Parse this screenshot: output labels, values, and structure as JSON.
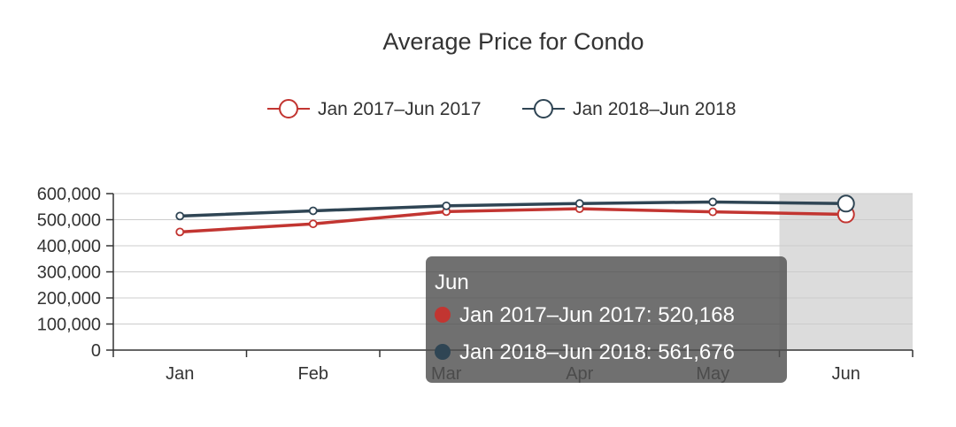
{
  "chart_data": {
    "type": "line",
    "title": "Average Price for Condo",
    "categories": [
      "Jan",
      "Feb",
      "Mar",
      "Apr",
      "May",
      "Jun"
    ],
    "series": [
      {
        "name": "Jan 2017–Jun 2017",
        "color": "#c23531",
        "values": [
          453000,
          484000,
          531000,
          542000,
          530000,
          520168
        ]
      },
      {
        "name": "Jan 2018–Jun 2018",
        "color": "#2f4554",
        "values": [
          514000,
          534000,
          553000,
          562000,
          568000,
          561676
        ]
      }
    ],
    "ylim": [
      0,
      600000
    ],
    "yticks": [
      "0",
      "100,000",
      "200,000",
      "300,000",
      "400,000",
      "500,000",
      "600,000"
    ],
    "grid": true,
    "legend_position": "top-center",
    "highlighted_category": "Jun"
  },
  "tooltip": {
    "title": "Jun",
    "rows": [
      {
        "label": "Jan 2017–Jun 2017: 520,168",
        "color": "#c23531"
      },
      {
        "label": "Jan 2018–Jun 2018: 561,676",
        "color": "#2f4554"
      }
    ]
  }
}
